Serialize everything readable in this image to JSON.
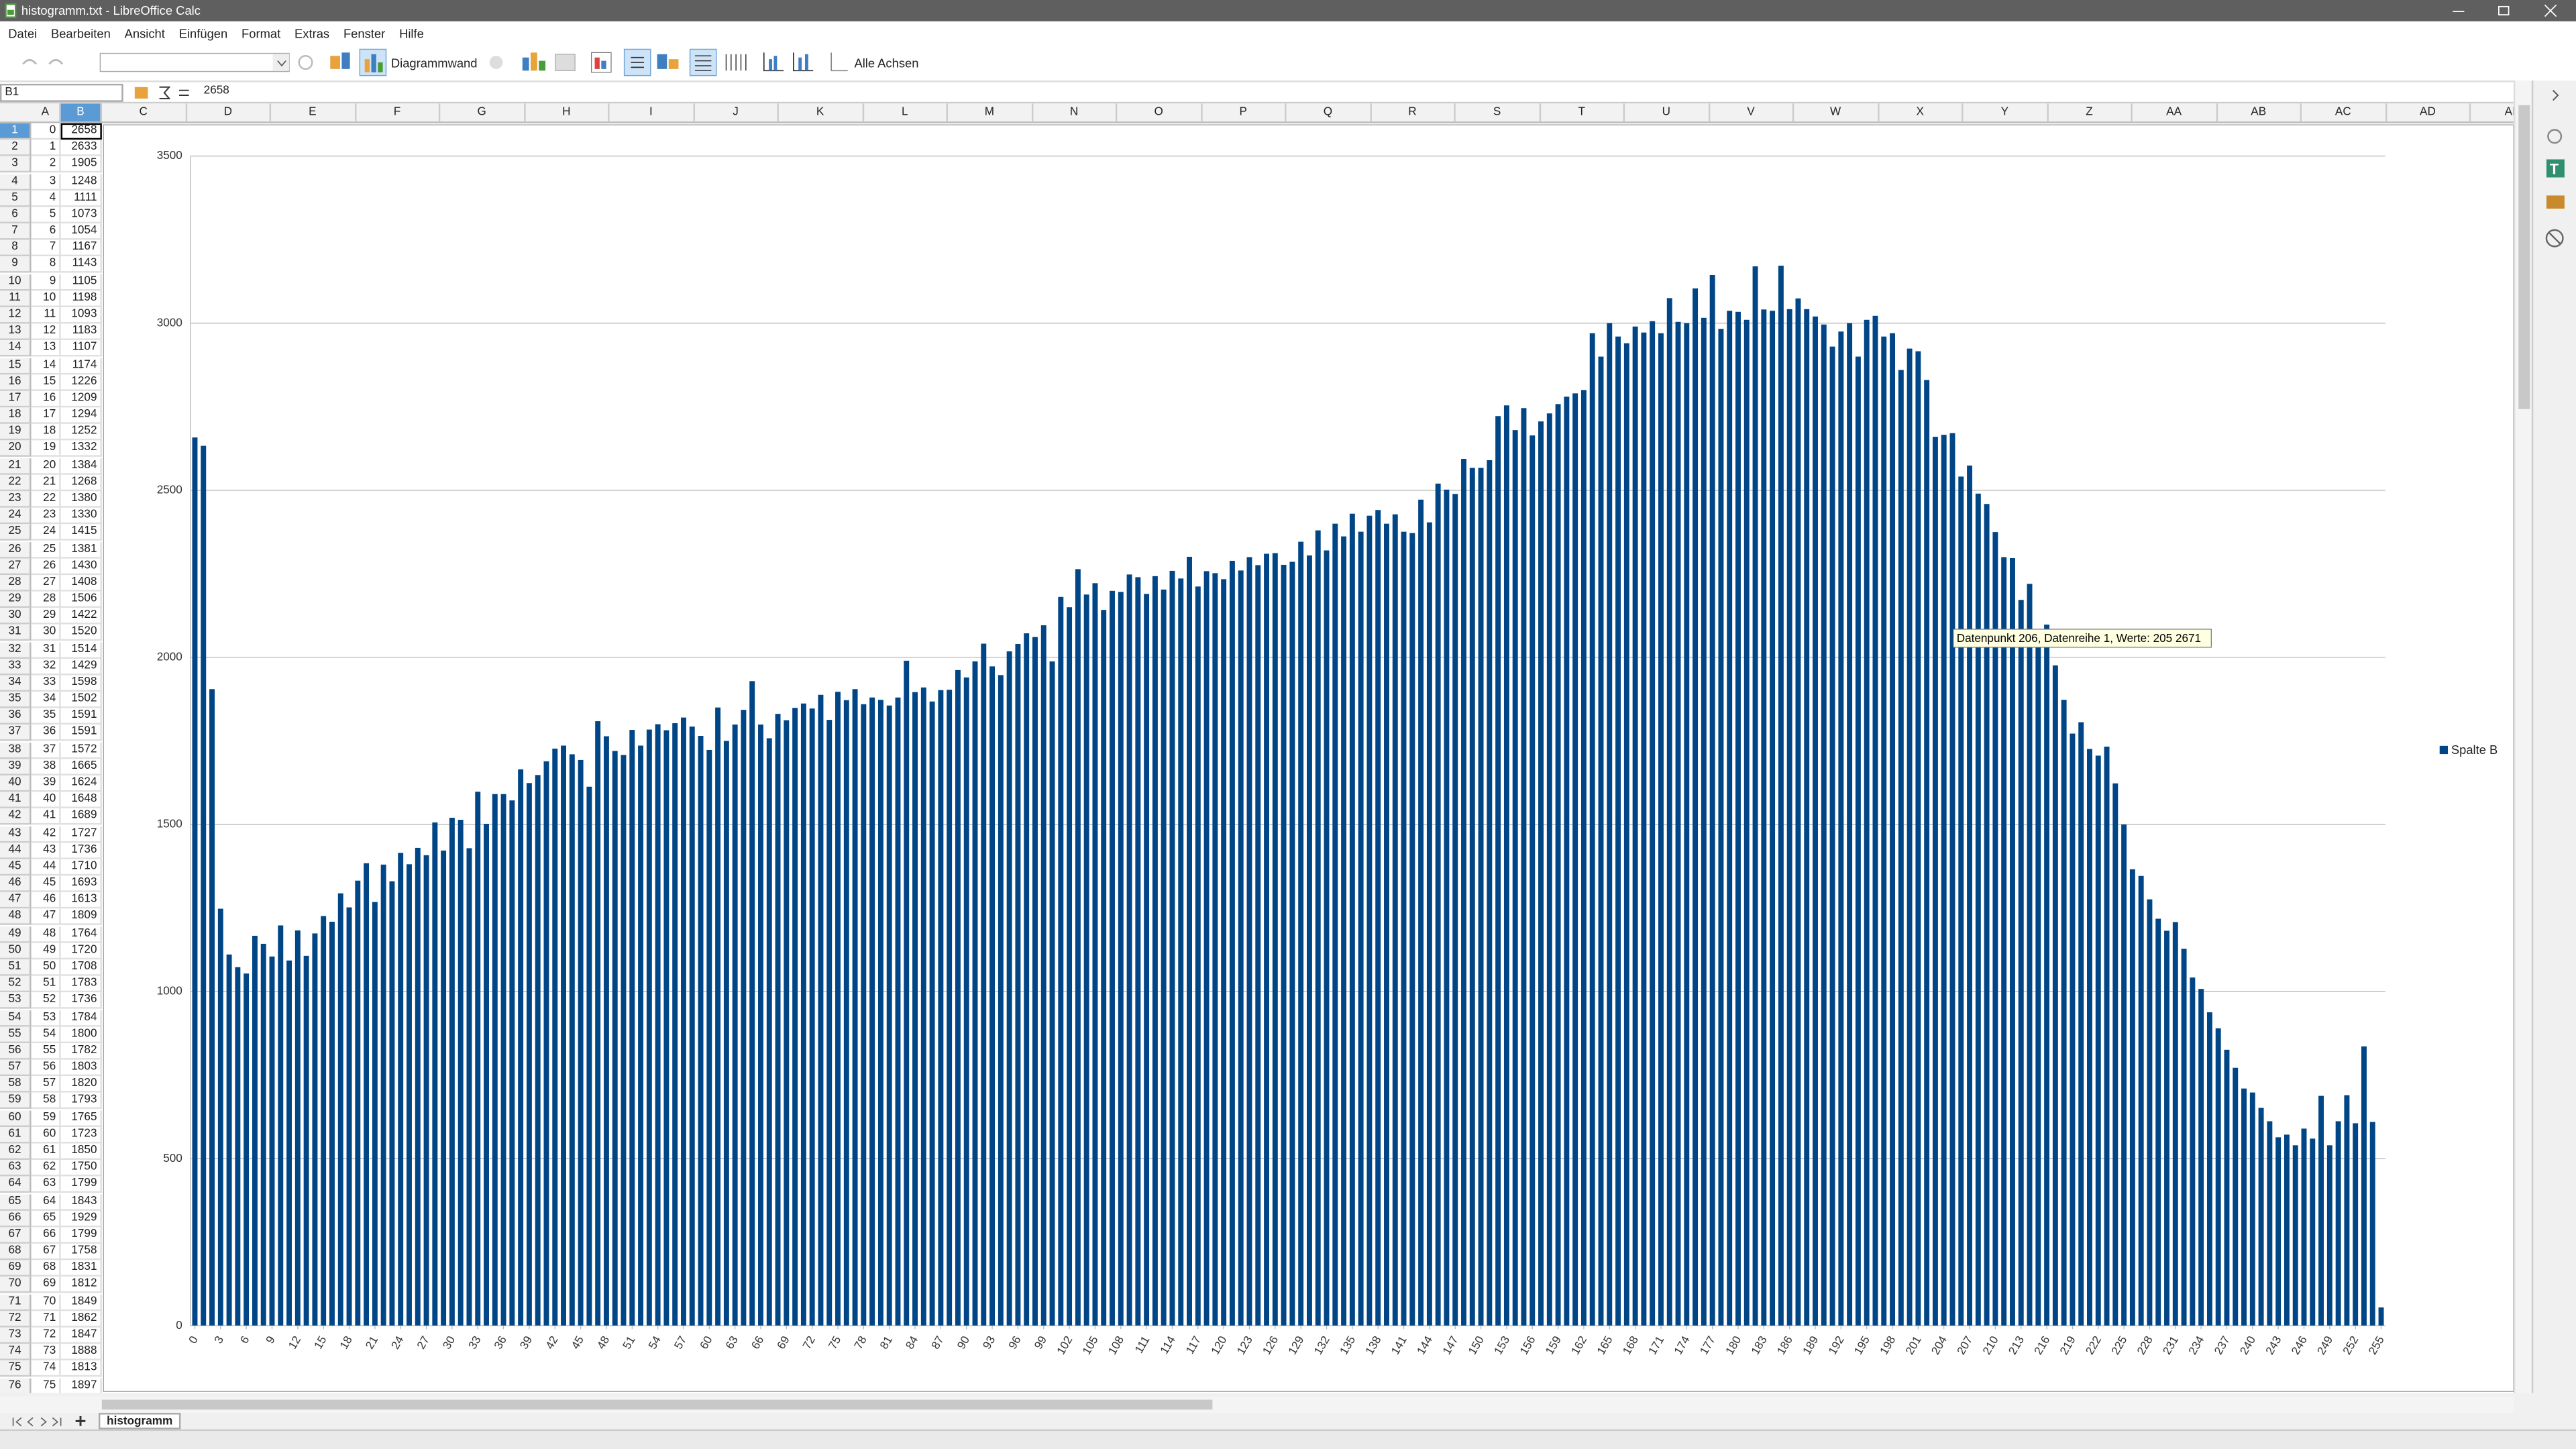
{
  "window": {
    "title": "histogramm.txt - LibreOffice Calc"
  },
  "menu": [
    "Datei",
    "Bearbeiten",
    "Ansicht",
    "Einfügen",
    "Format",
    "Extras",
    "Fenster",
    "Hilfe"
  ],
  "toolbar": {
    "chart_element": "Diagrammwand",
    "axes_button": "Alle Achsen"
  },
  "formula_bar": {
    "name_box": "B1"
  },
  "sheet": {
    "columns": [
      "A",
      "B",
      "C",
      "D",
      "E",
      "F",
      "G",
      "H",
      "I",
      "J",
      "K",
      "L",
      "M",
      "N",
      "O",
      "P",
      "Q",
      "R",
      "S",
      "T",
      "U",
      "V",
      "W",
      "X",
      "Y",
      "Z",
      "AA",
      "AB",
      "AC",
      "AD",
      "AE"
    ],
    "row_numbers": [
      1,
      2,
      3,
      4,
      5,
      6,
      7,
      8,
      9,
      10,
      11,
      12,
      13,
      14,
      15,
      16,
      17,
      18,
      19,
      20,
      21,
      22,
      23,
      24,
      25,
      26,
      27,
      28,
      29,
      30,
      31,
      32,
      33,
      34,
      35,
      36,
      37,
      38,
      39,
      40,
      41,
      42,
      43,
      44,
      45,
      46,
      47,
      48,
      49,
      50,
      51,
      52,
      53,
      54,
      55,
      56,
      57,
      58,
      59,
      60,
      61,
      62,
      63,
      64,
      65,
      66,
      67,
      68,
      69,
      70,
      71,
      72,
      73,
      74,
      75,
      76
    ],
    "column_a": [
      0,
      1,
      2,
      3,
      4,
      5,
      6,
      7,
      8,
      9,
      10,
      11,
      12,
      13,
      14,
      15,
      16,
      17,
      18,
      19,
      20,
      21,
      22,
      23,
      24,
      25,
      26,
      27,
      28,
      29,
      30,
      31,
      32,
      33,
      34,
      35,
      36,
      37,
      38,
      39,
      40,
      41,
      42,
      43,
      44,
      45,
      46,
      47,
      48,
      49,
      50,
      51,
      52,
      53,
      54,
      55,
      56,
      57,
      58,
      59,
      60,
      61,
      62,
      63,
      64,
      65,
      66,
      67,
      68,
      69,
      70,
      71,
      72,
      73,
      74,
      75
    ],
    "tab": "histogramm"
  },
  "chart_data": {
    "type": "bar",
    "categories": [
      0,
      null,
      null,
      3,
      null,
      null,
      6,
      null,
      null,
      9,
      null,
      null,
      12,
      null,
      null,
      15,
      null,
      null,
      18,
      null,
      null,
      21,
      null,
      null,
      24,
      null,
      null,
      27,
      null,
      null,
      30,
      null,
      null,
      33,
      null,
      null,
      36,
      null,
      null,
      39,
      null,
      null,
      42,
      null,
      null,
      45,
      null,
      null,
      48,
      null,
      null,
      51,
      null,
      null,
      54,
      null,
      null,
      57,
      null,
      null,
      60,
      null,
      null,
      63,
      null,
      null,
      66,
      null,
      null,
      69,
      null,
      null,
      72,
      null,
      null,
      75,
      null,
      null,
      78,
      null,
      null,
      81,
      null,
      null,
      84,
      null,
      null,
      87,
      null,
      null,
      90,
      null,
      null,
      93,
      null,
      null,
      96,
      null,
      null,
      99,
      null,
      null,
      102,
      null,
      null,
      105,
      null,
      null,
      108,
      null,
      null,
      111,
      null,
      null,
      114,
      null,
      null,
      117,
      null,
      null,
      120,
      null,
      null,
      123,
      null,
      null,
      126,
      null,
      null,
      129,
      null,
      null,
      132,
      null,
      null,
      135,
      null,
      null,
      138,
      null,
      null,
      141,
      null,
      null,
      144,
      null,
      null,
      147,
      null,
      null,
      150,
      null,
      null,
      153,
      null,
      null,
      156,
      null,
      null,
      159,
      null,
      null,
      162,
      null,
      null,
      165,
      null,
      null,
      168,
      null,
      null,
      171,
      null,
      null,
      174,
      null,
      null,
      177,
      null,
      null,
      180,
      null,
      null,
      183,
      null,
      null,
      186,
      null,
      null,
      189,
      null,
      null,
      192,
      null,
      null,
      195,
      null,
      null,
      198,
      null,
      null,
      201,
      null,
      null,
      204,
      null,
      null,
      207,
      null,
      null,
      210,
      null,
      null,
      213,
      null,
      null,
      216,
      null,
      null,
      219,
      null,
      null,
      222,
      null,
      null,
      225,
      null,
      null,
      228,
      null,
      null,
      231,
      null,
      null,
      234,
      null,
      null,
      237,
      null,
      null,
      240,
      null,
      null,
      243,
      null,
      null,
      246,
      null,
      null,
      249,
      null,
      null,
      252,
      null,
      null,
      255
    ],
    "series": [
      {
        "name": "Spalte B",
        "color": "#004586",
        "values": [
          2658,
          2633,
          1905,
          1248,
          1111,
          1073,
          1054,
          1167,
          1143,
          1105,
          1198,
          1093,
          1183,
          1107,
          1174,
          1226,
          1209,
          1294,
          1252,
          1332,
          1384,
          1268,
          1380,
          1330,
          1415,
          1381,
          1430,
          1408,
          1506,
          1422,
          1520,
          1514,
          1429,
          1598,
          1502,
          1591,
          1591,
          1572,
          1665,
          1624,
          1648,
          1689,
          1727,
          1736,
          1710,
          1693,
          1613,
          1809,
          1764,
          1720,
          1708,
          1783,
          1736,
          1784,
          1800,
          1782,
          1803,
          1820,
          1793,
          1765,
          1723,
          1850,
          1750,
          1799,
          1843,
          1929,
          1799,
          1758,
          1831,
          1812,
          1849,
          1862,
          1847,
          1888,
          1813,
          1897,
          1872,
          1905,
          1860,
          1880,
          1873,
          1856,
          1880,
          1990,
          1896,
          1910,
          1868,
          1902,
          1903,
          1962,
          1940,
          1988,
          2041,
          1973,
          1947,
          2018,
          2040,
          2072,
          2061,
          2096,
          1988,
          2181,
          2150,
          2264,
          2188,
          2222,
          2142,
          2199,
          2196,
          2248,
          2240,
          2190,
          2243,
          2203,
          2259,
          2236,
          2301,
          2212,
          2258,
          2252,
          2234,
          2289,
          2260,
          2300,
          2276,
          2310,
          2312,
          2277,
          2286,
          2346,
          2305,
          2380,
          2320,
          2400,
          2362,
          2430,
          2376,
          2424,
          2441,
          2400,
          2428,
          2376,
          2372,
          2472,
          2404,
          2520,
          2502,
          2489,
          2594,
          2567,
          2567,
          2590,
          2722,
          2754,
          2680,
          2746,
          2664,
          2706,
          2730,
          2758,
          2780,
          2790,
          2800,
          2970,
          2900,
          3000,
          2960,
          2940,
          2990,
          2972,
          3006,
          2970,
          3075,
          3004,
          3000,
          3104,
          3016,
          3144,
          2983,
          3037,
          3034,
          3010,
          3170,
          3041,
          3037,
          3172,
          3042,
          3074,
          3042,
          3020,
          2996,
          2930,
          2975,
          3000,
          2900,
          3010,
          3022,
          2960,
          2970,
          2860,
          2924,
          2916,
          2830,
          2660,
          2666,
          2671,
          2541,
          2574,
          2490,
          2459,
          2375,
          2300,
          2297,
          2172,
          2220,
          2080,
          2098,
          1976,
          1873,
          1772,
          1806,
          1726,
          1706,
          1733,
          1623,
          1500,
          1366,
          1346,
          1276,
          1218,
          1182,
          1208,
          1128,
          1042,
          1008,
          938,
          890,
          826,
          772,
          710,
          698,
          652,
          612,
          564,
          572,
          540,
          590,
          560,
          688,
          540,
          612,
          690,
          606,
          836,
          610,
          55
        ]
      }
    ],
    "ylim": [
      0,
      3500
    ],
    "yticks": [
      0,
      500,
      1000,
      1500,
      2000,
      2500,
      3000,
      3500
    ],
    "grid": true,
    "legend": "right",
    "tooltip": "Datenpunkt 206, Datenreihe 1, Werte: 205 2671"
  }
}
